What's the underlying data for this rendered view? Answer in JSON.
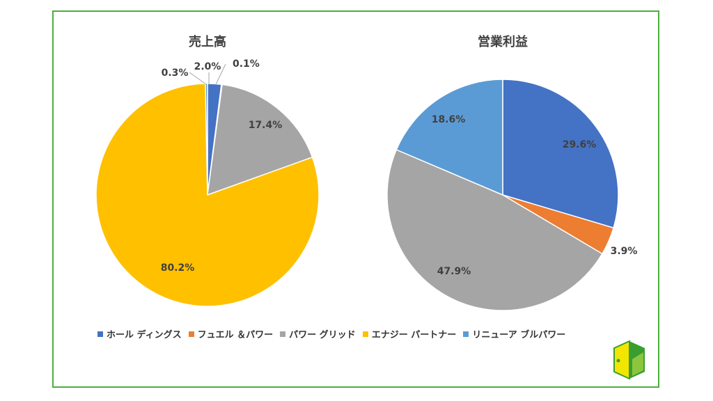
{
  "chart_data": [
    {
      "type": "pie",
      "title": "売上高",
      "categories": [
        "ホール ディングス",
        "フュエル ＆パワー",
        "パワー グリッド",
        "エナジー パートナー",
        "リニューア ブルパワー"
      ],
      "values": [
        2.0,
        0.1,
        17.4,
        80.2,
        0.3
      ],
      "labels": [
        "2.0%",
        "0.1%",
        "17.4%",
        "80.2%",
        "0.3%"
      ]
    },
    {
      "type": "pie",
      "title": "営業利益",
      "categories": [
        "ホール ディングス",
        "フュエル ＆パワー",
        "パワー グリッド",
        "エナジー パートナー",
        "リニューア ブルパワー"
      ],
      "values": [
        29.6,
        3.9,
        47.9,
        0.0,
        18.6
      ],
      "labels": [
        "29.6%",
        "3.9%",
        "47.9%",
        "",
        "18.6%"
      ]
    }
  ],
  "legend": [
    {
      "label": "ホール ディングス",
      "color": "#4472c4"
    },
    {
      "label": "フュエル ＆パワー",
      "color": "#ed7d31"
    },
    {
      "label": "パワー グリッド",
      "color": "#a5a5a5"
    },
    {
      "label": "エナジー パートナー",
      "color": "#ffc000"
    },
    {
      "label": "リニューア ブルパワー",
      "color": "#5b9bd5"
    }
  ],
  "colors": [
    "#4472c4",
    "#ed7d31",
    "#a5a5a5",
    "#ffc000",
    "#5b9bd5"
  ]
}
